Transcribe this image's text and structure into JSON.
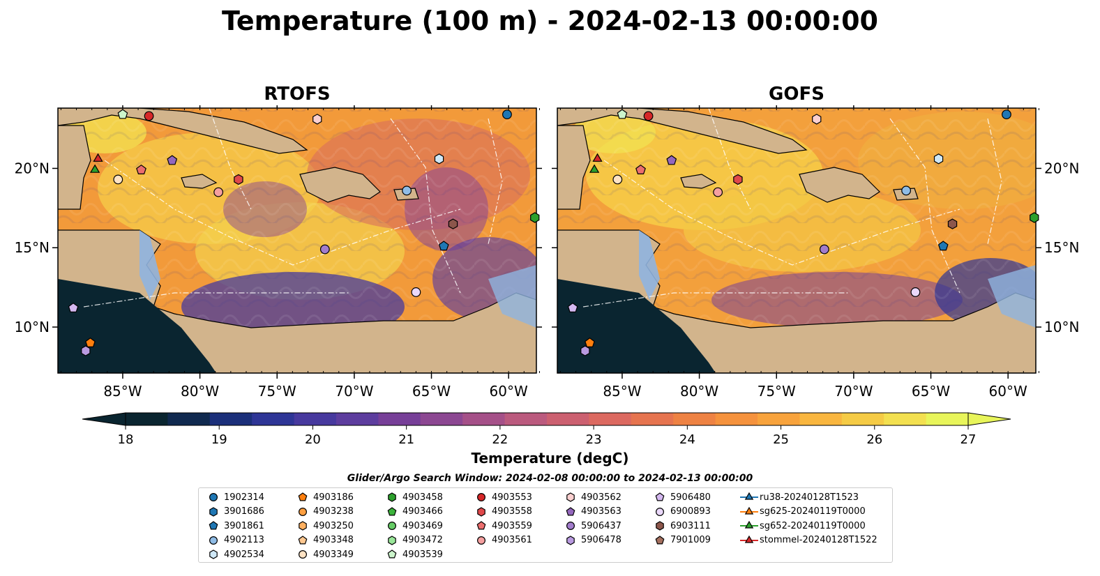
{
  "title": "Temperature (100 m) - 2024-02-13 00:00:00",
  "panels": [
    {
      "title": "RTOFS"
    },
    {
      "title": "GOFS"
    }
  ],
  "lat_ticks": [
    "20°N",
    "15°N",
    "10°N"
  ],
  "lon_ticks": [
    "85°W",
    "80°W",
    "75°W",
    "70°W",
    "65°W",
    "60°W"
  ],
  "colorbar": {
    "label": "Temperature (degC)",
    "ticks": [
      "18",
      "19",
      "20",
      "21",
      "22",
      "23",
      "24",
      "25",
      "26",
      "27"
    ],
    "min": 18,
    "max": 27,
    "colors": [
      "#0a2530",
      "#10294f",
      "#1b2f7a",
      "#2e3596",
      "#47399e",
      "#5d3d9e",
      "#773f98",
      "#8c4792",
      "#a55088",
      "#bb5a7e",
      "#cc6070",
      "#dc6960",
      "#e6744f",
      "#ee8243",
      "#f5923d",
      "#f8a33c",
      "#f9b63f",
      "#f5cb45",
      "#f3e050",
      "#e8f55a"
    ]
  },
  "search_window": "Glider/Argo Search Window: 2024-02-08 00:00:00 to 2024-02-13 00:00:00",
  "legend": {
    "columns": [
      [
        {
          "label": "1902314",
          "shape": "circle",
          "color": "#1f77b4"
        },
        {
          "label": "3901686",
          "shape": "hexagon",
          "color": "#1f77b4"
        },
        {
          "label": "3901861",
          "shape": "pentagon",
          "color": "#1f77b4"
        },
        {
          "label": "4902113",
          "shape": "circle",
          "color": "#8fbce6"
        },
        {
          "label": "4902534",
          "shape": "hexagon",
          "color": "#cfe8f7"
        }
      ],
      [
        {
          "label": "4903186",
          "shape": "pentagon",
          "color": "#ff7f0e"
        },
        {
          "label": "4903238",
          "shape": "circle",
          "color": "#ff9f40"
        },
        {
          "label": "4903250",
          "shape": "hexagon",
          "color": "#ffb060"
        },
        {
          "label": "4903348",
          "shape": "pentagon",
          "color": "#ffc890"
        },
        {
          "label": "4903349",
          "shape": "circle",
          "color": "#ffe3c4"
        }
      ],
      [
        {
          "label": "4903458",
          "shape": "hexagon",
          "color": "#2ca02c"
        },
        {
          "label": "4903466",
          "shape": "pentagon",
          "color": "#3bb33b"
        },
        {
          "label": "4903469",
          "shape": "circle",
          "color": "#66cc66"
        },
        {
          "label": "4903472",
          "shape": "hexagon",
          "color": "#99e699"
        },
        {
          "label": "4903539",
          "shape": "pentagon",
          "color": "#ccf5cc"
        }
      ],
      [
        {
          "label": "4903553",
          "shape": "circle",
          "color": "#d62728"
        },
        {
          "label": "4903558",
          "shape": "hexagon",
          "color": "#e0484a"
        },
        {
          "label": "4903559",
          "shape": "pentagon",
          "color": "#eb6e6e"
        },
        {
          "label": "4903561",
          "shape": "circle",
          "color": "#f5a0a0"
        }
      ],
      [
        {
          "label": "4903562",
          "shape": "hexagon",
          "color": "#fbd0d0"
        },
        {
          "label": "4903563",
          "shape": "pentagon",
          "color": "#9467bd"
        },
        {
          "label": "5906437",
          "shape": "circle",
          "color": "#a27ccc"
        },
        {
          "label": "5906478",
          "shape": "hexagon",
          "color": "#b99ae0"
        }
      ],
      [
        {
          "label": "5906480",
          "shape": "pentagon",
          "color": "#d4b8f0"
        },
        {
          "label": "6900893",
          "shape": "circle",
          "color": "#ead8fa"
        },
        {
          "label": "6903111",
          "shape": "hexagon",
          "color": "#8c564b"
        },
        {
          "label": "7901009",
          "shape": "pentagon",
          "color": "#a5705f"
        }
      ],
      [
        {
          "label": "ru38-20240128T1523",
          "shape": "triangle",
          "color": "#1f77b4"
        },
        {
          "label": "sg625-20240119T0000",
          "shape": "triangle",
          "color": "#ff7f0e"
        },
        {
          "label": "sg652-20240119T0000",
          "shape": "triangle",
          "color": "#2ca02c"
        },
        {
          "label": "stommel-20240128T1522",
          "shape": "triangle",
          "color": "#d62728"
        }
      ]
    ]
  },
  "map_markers": [
    {
      "id": "4903539",
      "shape": "pentagon",
      "color": "#ccf5cc",
      "lon": -85.0,
      "lat": 23.4
    },
    {
      "id": "4903553",
      "shape": "circle",
      "color": "#d62728",
      "lon": -83.3,
      "lat": 23.3
    },
    {
      "id": "1902314",
      "shape": "circle",
      "color": "#1f77b4",
      "lon": -60.1,
      "lat": 23.4
    },
    {
      "id": "4903562",
      "shape": "hexagon",
      "color": "#fbd0d0",
      "lon": -72.4,
      "lat": 23.1
    },
    {
      "id": "stommel-20240128T1522",
      "shape": "triangle",
      "color": "#d62728",
      "lon": -86.6,
      "lat": 20.6
    },
    {
      "id": "sg652-20240119T0000",
      "shape": "triangle",
      "color": "#2ca02c",
      "lon": -86.8,
      "lat": 19.9
    },
    {
      "id": "4903559",
      "shape": "pentagon",
      "color": "#eb6e6e",
      "lon": -83.8,
      "lat": 19.9
    },
    {
      "id": "4903563",
      "shape": "pentagon",
      "color": "#9467bd",
      "lon": -81.8,
      "lat": 20.5
    },
    {
      "id": "4903349",
      "shape": "circle",
      "color": "#ffe3c4",
      "lon": -85.3,
      "lat": 19.3
    },
    {
      "id": "4903561",
      "shape": "circle",
      "color": "#f5a0a0",
      "lon": -78.8,
      "lat": 18.5
    },
    {
      "id": "4903558",
      "shape": "hexagon",
      "color": "#e0484a",
      "lon": -77.5,
      "lat": 19.3
    },
    {
      "id": "4902534",
      "shape": "hexagon",
      "color": "#cfe8f7",
      "lon": -64.5,
      "lat": 20.6
    },
    {
      "id": "4902113",
      "shape": "circle",
      "color": "#8fbce6",
      "lon": -66.6,
      "lat": 18.6
    },
    {
      "id": "4903458",
      "shape": "hexagon",
      "color": "#2ca02c",
      "lon": -58.3,
      "lat": 16.9
    },
    {
      "id": "6903111",
      "shape": "hexagon",
      "color": "#8c564b",
      "lon": -63.6,
      "lat": 16.5
    },
    {
      "id": "3901861",
      "shape": "pentagon",
      "color": "#1f77b4",
      "lon": -64.2,
      "lat": 15.1
    },
    {
      "id": "5906437",
      "shape": "circle",
      "color": "#a27ccc",
      "lon": -71.9,
      "lat": 14.9
    },
    {
      "id": "6900893",
      "shape": "circle",
      "color": "#ead8fa",
      "lon": -66.0,
      "lat": 12.2
    },
    {
      "id": "5906480",
      "shape": "pentagon",
      "color": "#d4b8f0",
      "lon": -88.2,
      "lat": 11.2
    },
    {
      "id": "4903186",
      "shape": "pentagon",
      "color": "#ff7f0e",
      "lon": -87.1,
      "lat": 9.0
    },
    {
      "id": "5906478",
      "shape": "hexagon",
      "color": "#b99ae0",
      "lon": -87.4,
      "lat": 8.5
    }
  ]
}
